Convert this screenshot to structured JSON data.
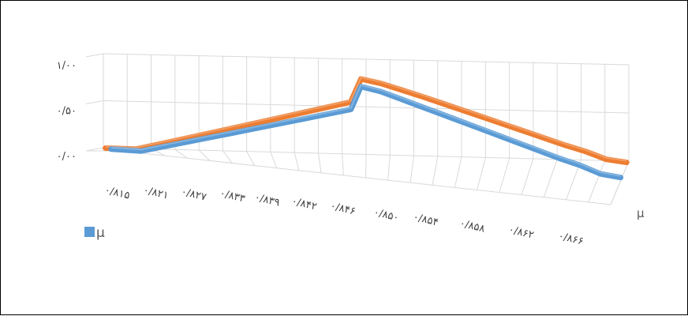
{
  "chart_data": {
    "type": "line",
    "view": "3d",
    "categories": [
      "۰/۸۱۵",
      "۰/۸۲۱",
      "۰/۸۲۷",
      "۰/۸۳۳",
      "۰/۸۳۹",
      "۰/۸۴۲",
      "۰/۸۴۶",
      "۰/۸۵۰",
      "۰/۸۵۴",
      "۰/۸۵۸",
      "۰/۸۶۲",
      "۰/۸۶۶"
    ],
    "x": [
      0.815,
      0.818,
      0.821,
      0.824,
      0.827,
      0.83,
      0.833,
      0.836,
      0.839,
      0.84,
      0.842,
      0.844,
      0.846,
      0.848,
      0.85,
      0.852,
      0.854,
      0.856,
      0.858,
      0.86,
      0.862,
      0.864,
      0.866
    ],
    "series": [
      {
        "name": "",
        "color": "#ED7D31",
        "values": [
          0.0,
          0.0,
          0.1,
          0.2,
          0.3,
          0.4,
          0.5,
          0.6,
          0.7,
          1.0,
          0.95,
          0.875,
          0.8,
          0.72,
          0.64,
          0.56,
          0.48,
          0.4,
          0.32,
          0.24,
          0.17,
          0.08,
          0.05
        ]
      },
      {
        "name": "μ",
        "color": "#5B9BD5",
        "values": [
          0.0,
          0.0,
          0.1,
          0.2,
          0.3,
          0.4,
          0.5,
          0.6,
          0.7,
          1.0,
          0.95,
          0.87,
          0.79,
          0.71,
          0.63,
          0.55,
          0.47,
          0.39,
          0.31,
          0.23,
          0.16,
          0.07,
          0.04
        ]
      }
    ],
    "yticks": [
      "۰/۰۰",
      "۰/۵۰",
      "۱/۰۰"
    ],
    "ylim": [
      0,
      1
    ],
    "depth_axis_label": "μ",
    "legend": {
      "label": "μ",
      "color": "#5B9BD5",
      "position": "left"
    },
    "grid": true
  }
}
